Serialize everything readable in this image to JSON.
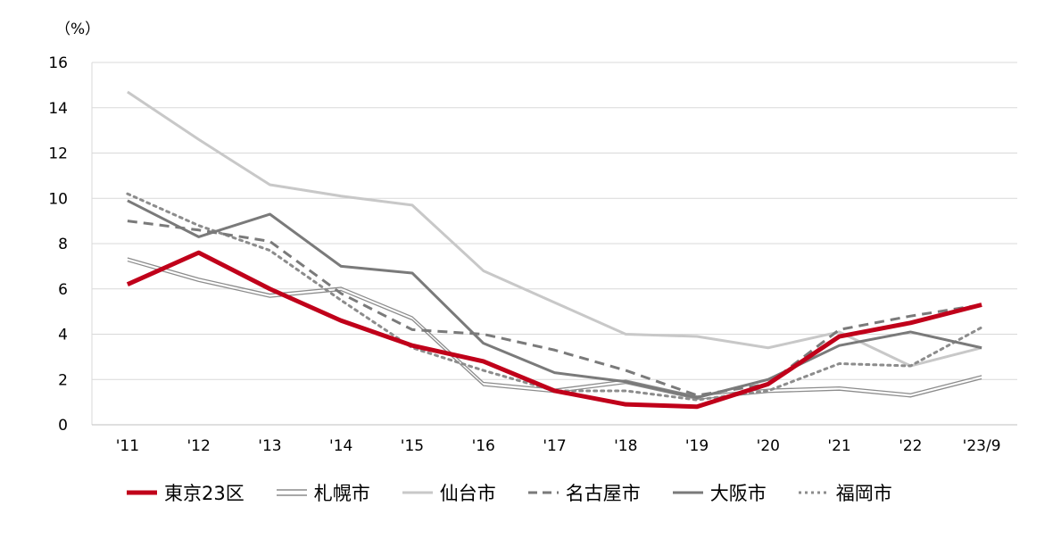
{
  "chart_data": {
    "type": "line",
    "unit_label": "（%）",
    "x": [
      "'11",
      "'12",
      "'13",
      "'14",
      "'15",
      "'16",
      "'17",
      "'18",
      "'19",
      "'20",
      "'21",
      "'22",
      "'23/9"
    ],
    "ylim": [
      0,
      16
    ],
    "yticks": [
      "0",
      "2",
      "4",
      "6",
      "8",
      "10",
      "12",
      "14",
      "16"
    ],
    "grid": true,
    "legend_position": "bottom",
    "series": [
      {
        "name": "東京23区",
        "key": "tokyo",
        "color": "#c0001a",
        "style": "solid-thick",
        "values": [
          6.2,
          7.6,
          6.0,
          4.6,
          3.5,
          2.8,
          1.5,
          0.9,
          0.8,
          1.8,
          3.9,
          4.5,
          5.3
        ]
      },
      {
        "name": "札幌市",
        "key": "sapporo",
        "color": "#8c8c8c",
        "style": "double",
        "values": [
          7.3,
          6.4,
          5.7,
          6.0,
          4.7,
          1.8,
          1.5,
          1.9,
          1.2,
          1.5,
          1.6,
          1.3,
          2.1
        ]
      },
      {
        "name": "仙台市",
        "key": "sendai",
        "color": "#c8c8c8",
        "style": "solid",
        "values": [
          14.7,
          12.6,
          10.6,
          10.1,
          9.7,
          6.8,
          5.4,
          4.0,
          3.9,
          3.4,
          4.1,
          2.6,
          3.4
        ]
      },
      {
        "name": "名古屋市",
        "key": "nagoya",
        "color": "#7a7a7a",
        "style": "dashed",
        "values": [
          9.0,
          8.6,
          8.1,
          5.8,
          4.2,
          4.0,
          3.3,
          2.4,
          1.3,
          1.8,
          4.2,
          4.8,
          5.3
        ]
      },
      {
        "name": "大阪市",
        "key": "osaka",
        "color": "#7a7a7a",
        "style": "solid",
        "values": [
          9.9,
          8.3,
          9.3,
          7.0,
          6.7,
          3.6,
          2.3,
          1.9,
          1.2,
          2.0,
          3.5,
          4.1,
          3.4
        ]
      },
      {
        "name": "福岡市",
        "key": "fukuoka",
        "color": "#8c8c8c",
        "style": "dotted",
        "values": [
          10.2,
          8.8,
          7.7,
          5.5,
          3.4,
          2.4,
          1.5,
          1.5,
          1.1,
          1.5,
          2.7,
          2.6,
          4.3
        ]
      }
    ]
  }
}
